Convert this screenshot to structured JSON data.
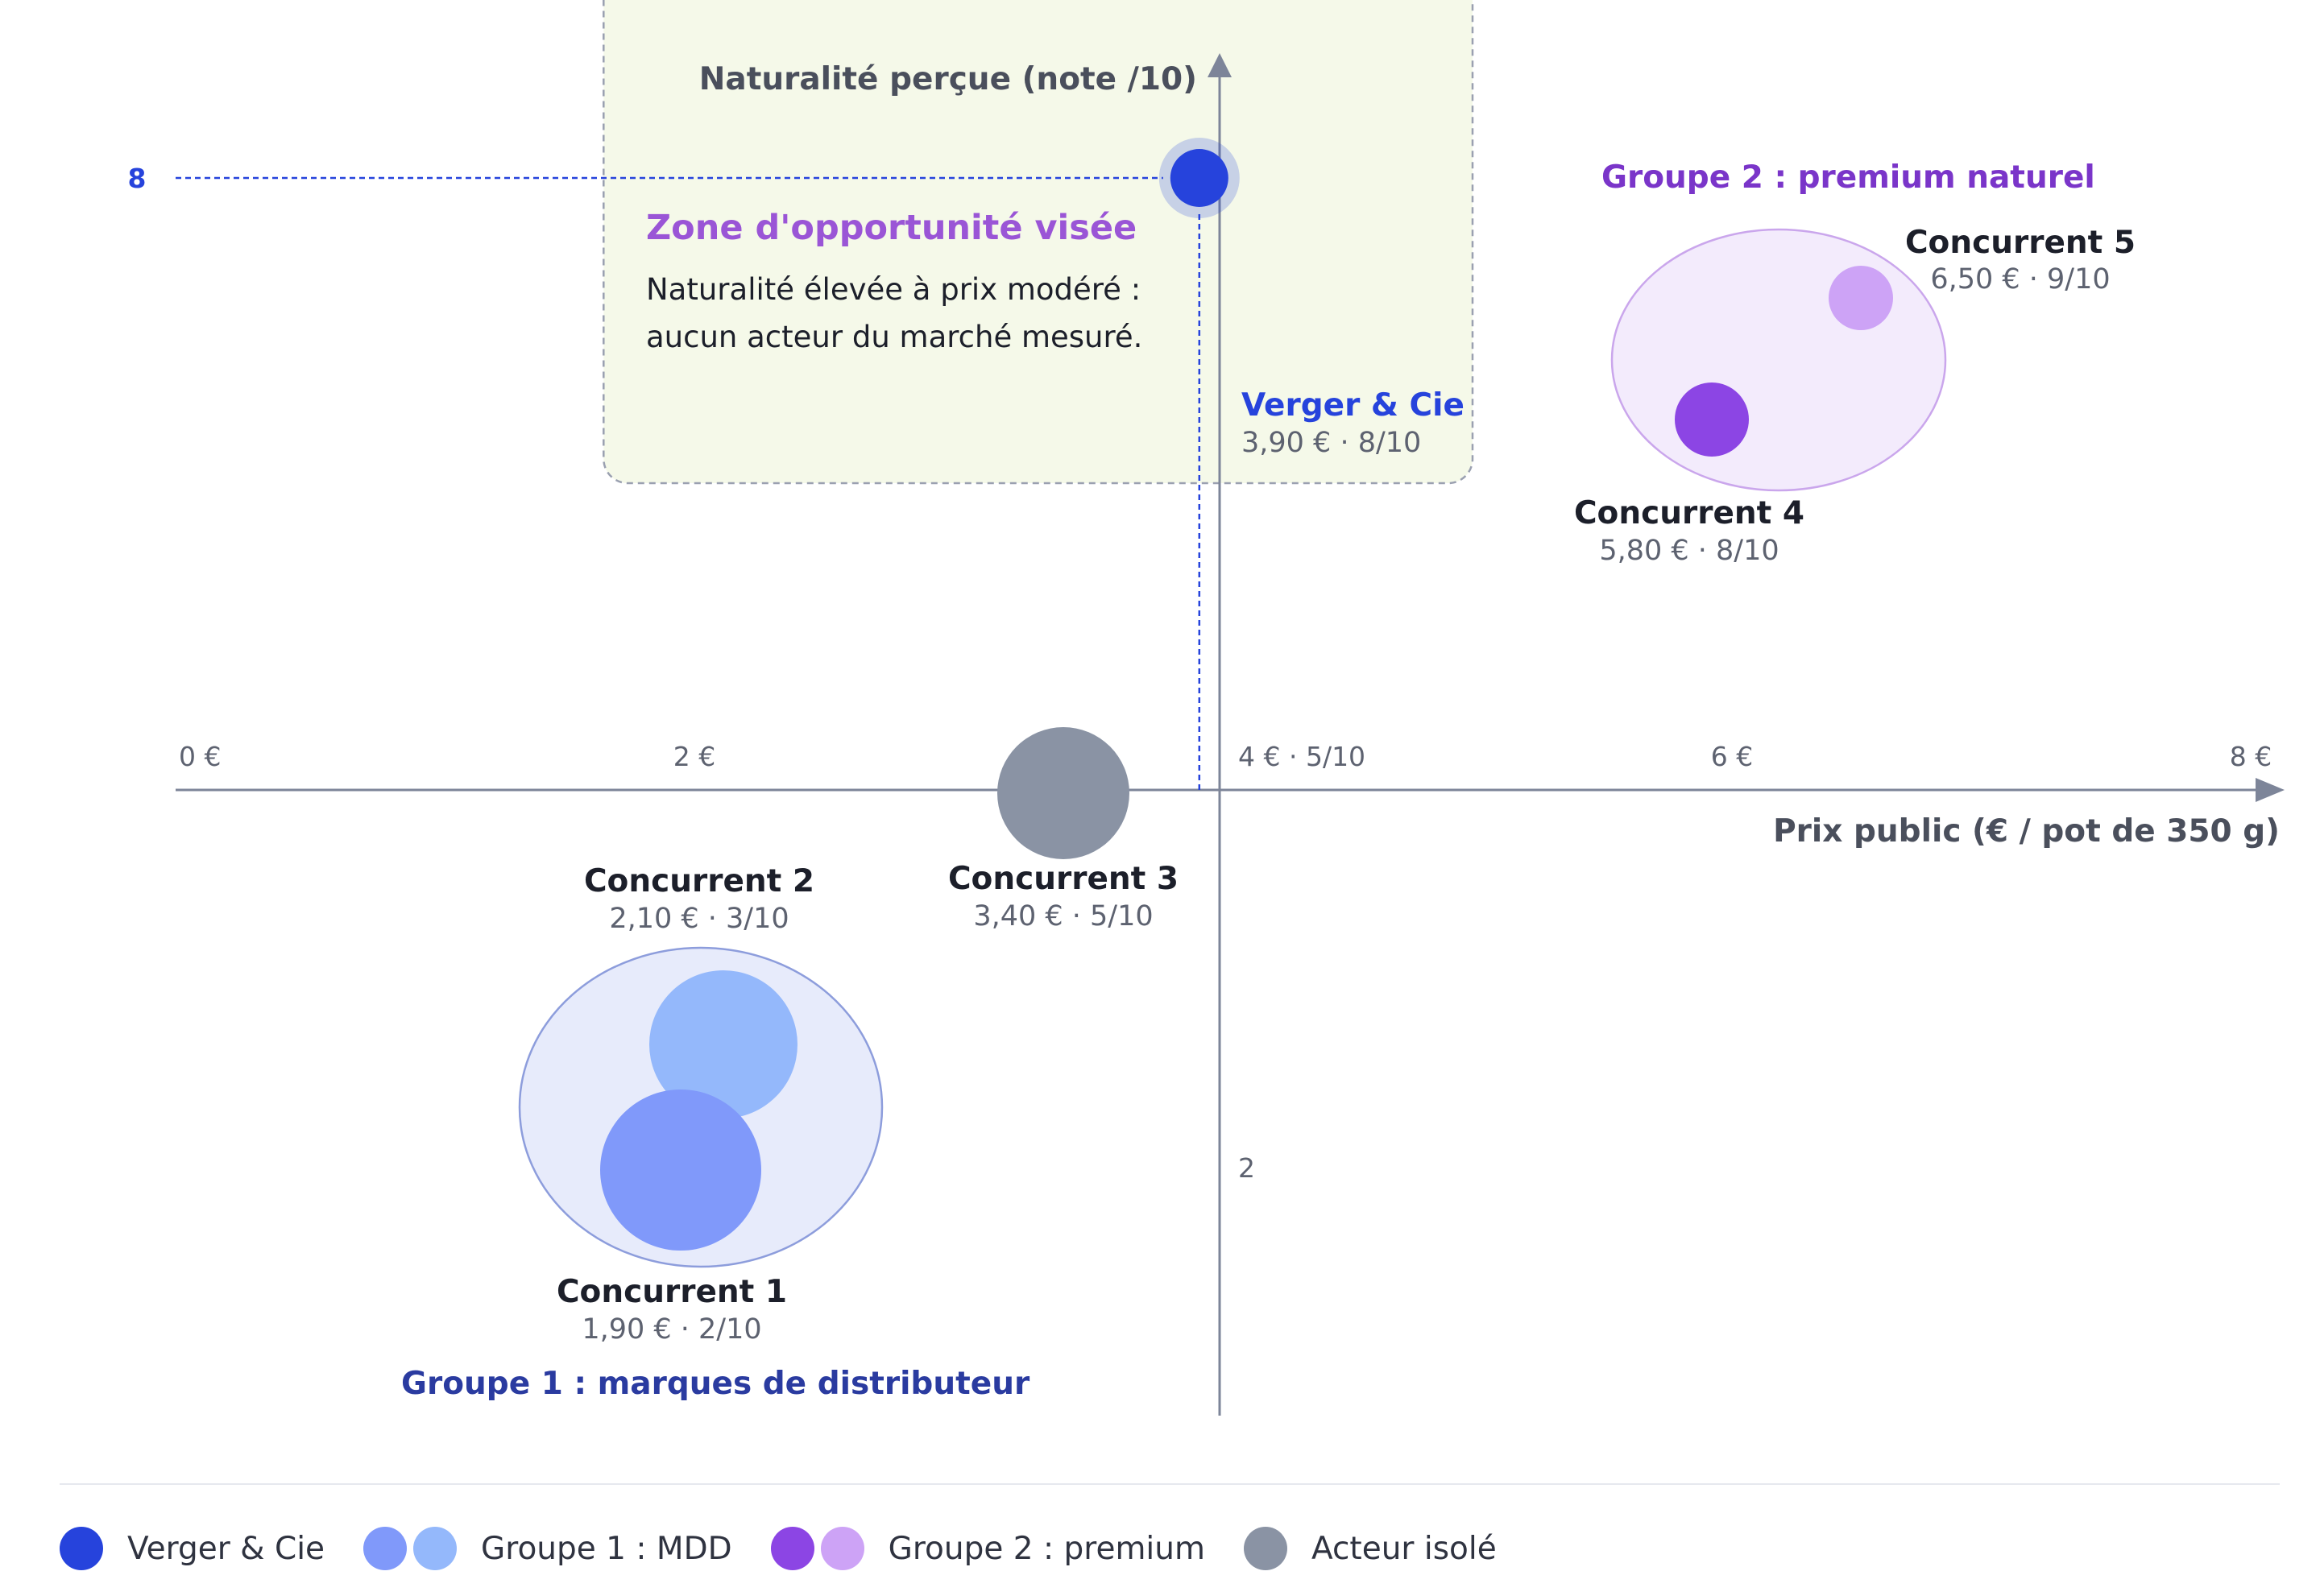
{
  "chart_data": {
    "type": "scatter",
    "xlabel": "Prix public (€ / pot de 350 g)",
    "ylabel": "Naturalité perçue (note /10)",
    "xlim": [
      0,
      8
    ],
    "ylim": [
      0,
      10
    ],
    "x_tick_labels": [
      "0 €",
      "2 €",
      "4 € · 5/10",
      "6 €",
      "8 €"
    ],
    "y_tick_labels": [
      "2",
      "8"
    ],
    "opportunity_zone": {
      "title": "Zone d'opportunité visée",
      "text_line1": "Naturalité élevée à prix modéré :",
      "text_line2": "aucun acteur du marché mesuré.",
      "x_range": [
        1.65,
        5.0
      ],
      "y_range": [
        6.5,
        10.0
      ]
    },
    "groups": [
      {
        "label": "Groupe 1 : marques de distributeur",
        "color": "#2a3ba0",
        "fill": "#e7ebfb",
        "stroke": "#8d9ddc"
      },
      {
        "label": "Groupe 2 : premium naturel",
        "color": "#7a35c9",
        "fill": "#f3ebfc",
        "stroke": "#caa6ec"
      }
    ],
    "points": [
      {
        "name": "Verger & Cie",
        "label": "3,90 € · 8/10",
        "x": 3.9,
        "y": 8,
        "color": "#2643dc",
        "highlight": true
      },
      {
        "name": "Concurrent 1",
        "label": "1,90 € · 2/10",
        "x": 1.9,
        "y": 2,
        "color": "#8099fa"
      },
      {
        "name": "Concurrent 2",
        "label": "2,10 € · 3/10",
        "x": 2.1,
        "y": 3,
        "color": "#94b8fb"
      },
      {
        "name": "Concurrent 3",
        "label": "3,40 € · 5/10",
        "x": 3.4,
        "y": 5,
        "color": "#8a93a4"
      },
      {
        "name": "Concurrent 4",
        "label": "5,80 € · 8/10",
        "x": 5.8,
        "y": 8,
        "color": "#8c45e4"
      },
      {
        "name": "Concurrent 5",
        "label": "6,50 € · 9/10",
        "x": 6.5,
        "y": 9,
        "color": "#cda3f6"
      }
    ]
  },
  "legend": [
    {
      "label": "Verger & Cie",
      "colors": [
        "#2643dc"
      ]
    },
    {
      "label": "Groupe 1 : MDD",
      "colors": [
        "#8099fa",
        "#94b8fb"
      ]
    },
    {
      "label": "Groupe 2 : premium",
      "colors": [
        "#8c45e4",
        "#cda3f6"
      ]
    },
    {
      "label": "Acteur isolé",
      "colors": [
        "#8a93a4"
      ]
    }
  ],
  "colors": {
    "axis": "#7d8599",
    "axis_text": "#4a4f5c",
    "tick_text": "#5d6270",
    "name_text": "#1c1f2a",
    "value_text": "#5d6270",
    "highlight_name": "#2643dc",
    "zone_fill": "#f5f9e9",
    "zone_stroke": "#9aa0b0",
    "zone_title": "#9a55d6",
    "zone_text": "#1c1f2a",
    "guide_line": "#2643dc"
  }
}
